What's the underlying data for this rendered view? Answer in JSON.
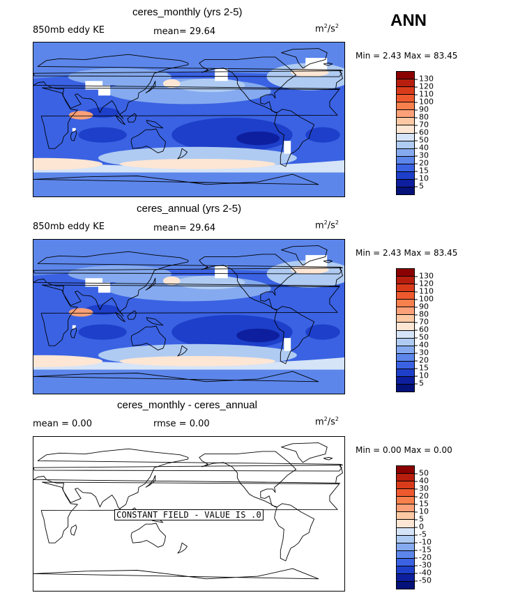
{
  "season": "ANN",
  "panels": [
    {
      "title": "ceres_monthly (yrs 2-5)",
      "left_label": "850mb eddy KE",
      "mid_label": "mean=  29.64",
      "units": "m²/s²",
      "minmax": "Min =   2.43 Max =  83.45",
      "field": "eddy",
      "colorbar": {
        "labels": [
          "130",
          "120",
          "110",
          "100",
          "90",
          "80",
          "70",
          "60",
          "50",
          "40",
          "30",
          "20",
          "15",
          "10",
          "5"
        ],
        "colors": [
          "#8b0000",
          "#b81e0e",
          "#d93b1a",
          "#ee5a2e",
          "#f7804d",
          "#fba078",
          "#fdc9a5",
          "#fde6d4",
          "#d6e4f7",
          "#afcbf2",
          "#85aaef",
          "#5c86ea",
          "#3a62e3",
          "#1d3fc9",
          "#0d1f9e",
          "#04127a"
        ]
      }
    },
    {
      "title": "ceres_annual (yrs 2-5)",
      "left_label": "850mb eddy KE",
      "mid_label": "mean=  29.64",
      "units": "m²/s²",
      "minmax": "Min =   2.43 Max =  83.45",
      "field": "eddy",
      "colorbar": {
        "labels": [
          "130",
          "120",
          "110",
          "100",
          "90",
          "80",
          "70",
          "60",
          "50",
          "40",
          "30",
          "20",
          "15",
          "10",
          "5"
        ],
        "colors": [
          "#8b0000",
          "#b81e0e",
          "#d93b1a",
          "#ee5a2e",
          "#f7804d",
          "#fba078",
          "#fdc9a5",
          "#fde6d4",
          "#d6e4f7",
          "#afcbf2",
          "#85aaef",
          "#5c86ea",
          "#3a62e3",
          "#1d3fc9",
          "#0d1f9e",
          "#04127a"
        ]
      }
    },
    {
      "title": "ceres_monthly - ceres_annual",
      "left_label": "mean =    0.00",
      "mid_label": "rmse =    0.00",
      "units": "m²/s²",
      "minmax": "Min =   0.00 Max =   0.00",
      "field": "constant",
      "constant_note": "CONSTANT FIELD - VALUE IS .0",
      "colorbar": {
        "labels": [
          "50",
          "40",
          "30",
          "20",
          "15",
          "10",
          "5",
          "0",
          "-5",
          "-10",
          "-15",
          "-20",
          "-30",
          "-40",
          "-50"
        ],
        "colors": [
          "#8b0000",
          "#b81e0e",
          "#d93b1a",
          "#ee5a2e",
          "#f7804d",
          "#fba078",
          "#fdc9a5",
          "#fde6d4",
          "#d6e4f7",
          "#afcbf2",
          "#85aaef",
          "#5c86ea",
          "#3a62e3",
          "#1d3fc9",
          "#0d1f9e",
          "#04127a"
        ]
      }
    }
  ]
}
